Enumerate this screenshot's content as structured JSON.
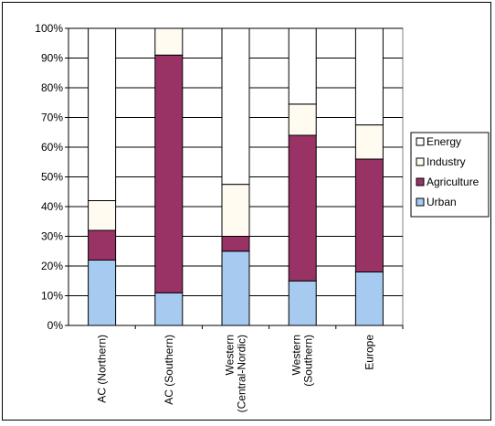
{
  "chart_data": {
    "type": "bar",
    "stacked": true,
    "percent": true,
    "categories": [
      [
        "AC (Northern)"
      ],
      [
        "AC (Southern)"
      ],
      [
        "Western",
        "(Central-Nordic)"
      ],
      [
        "Western",
        "(Southern)"
      ],
      [
        "Europe"
      ]
    ],
    "series": [
      {
        "name": "Urban",
        "color": "#a6caf0",
        "values": [
          22,
          11,
          25,
          15,
          18
        ]
      },
      {
        "name": "Agriculture",
        "color": "#993366",
        "values": [
          10,
          80,
          5,
          49,
          38
        ]
      },
      {
        "name": "Industry",
        "color": "#fffbf0",
        "values": [
          10,
          9,
          17.5,
          10.5,
          11.5
        ]
      },
      {
        "name": "Energy",
        "color": "#ffffff",
        "values": [
          58,
          0,
          52.5,
          25.5,
          32.5
        ]
      }
    ],
    "legend_order": [
      "Energy",
      "Industry",
      "Agriculture",
      "Urban"
    ],
    "ylim": [
      0,
      100
    ],
    "yticks": [
      "0%",
      "10%",
      "20%",
      "30%",
      "40%",
      "50%",
      "60%",
      "70%",
      "80%",
      "90%",
      "100%"
    ],
    "grid": true,
    "legend_position": "right"
  }
}
